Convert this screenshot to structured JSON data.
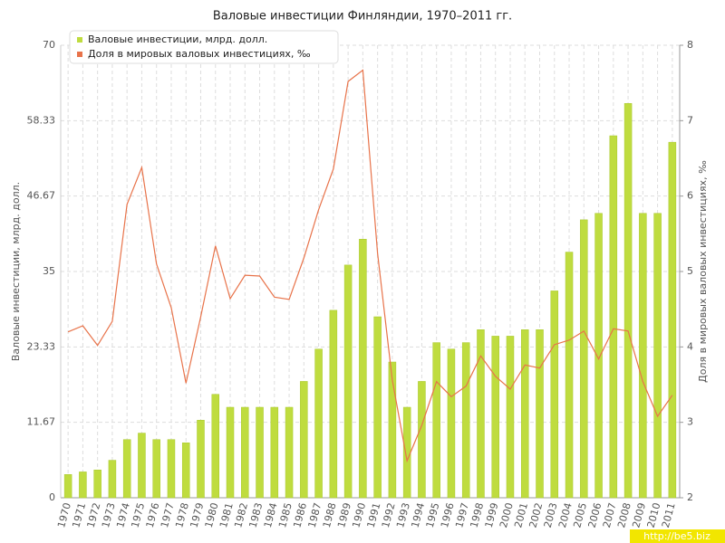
{
  "chart_data": {
    "type": "combo",
    "title": "Валовые инвестиции Финляндии, 1970–2011 гг.",
    "ylabel": "Валовые инвестиции, млрд. долл.",
    "y2label": "Доля в мировых валовых инвестициях, ‰",
    "watermark": "http://be5.biz",
    "categories": [
      "1970",
      "1971",
      "1972",
      "1973",
      "1974",
      "1975",
      "1976",
      "1977",
      "1978",
      "1979",
      "1980",
      "1981",
      "1982",
      "1983",
      "1984",
      "1985",
      "1986",
      "1987",
      "1988",
      "1989",
      "1990",
      "1991",
      "1992",
      "1993",
      "1994",
      "1995",
      "1996",
      "1997",
      "1998",
      "1999",
      "2000",
      "2001",
      "2002",
      "2003",
      "2004",
      "2005",
      "2006",
      "2007",
      "2008",
      "2009",
      "2010",
      "2011"
    ],
    "series": [
      {
        "name": "Валовые инвестиции, млрд. долл.",
        "type": "bar",
        "color": "#bfdc3f",
        "values": [
          3.6,
          4,
          4.3,
          5.8,
          9,
          10,
          9,
          9,
          8.5,
          12,
          16,
          14,
          14,
          14,
          14,
          14,
          18,
          23,
          29,
          36,
          40,
          28,
          21,
          14,
          18,
          24,
          23,
          24,
          26,
          25,
          25,
          26,
          26,
          32,
          38,
          43,
          44,
          56,
          61,
          44,
          44,
          55
        ]
      },
      {
        "name": "Доля в мировых валовых инвестициях, ‰",
        "type": "line",
        "axis": "y2",
        "color": "#e8734a",
        "values": [
          4.2,
          4.28,
          4.02,
          4.34,
          5.89,
          6.38,
          5.1,
          4.52,
          3.52,
          4.4,
          5.34,
          4.64,
          4.95,
          4.94,
          4.66,
          4.63,
          5.18,
          5.82,
          6.36,
          7.52,
          7.67,
          5.24,
          3.56,
          2.49,
          2.96,
          3.54,
          3.34,
          3.48,
          3.88,
          3.61,
          3.44,
          3.76,
          3.72,
          4.03,
          4.09,
          4.21,
          3.84,
          4.24,
          4.21,
          3.54,
          3.08,
          3.36
        ]
      }
    ],
    "ylim": [
      0,
      70
    ],
    "yticks": [
      0,
      11.67,
      23.33,
      35,
      46.67,
      58.33,
      70
    ],
    "y2lim": [
      2,
      8
    ],
    "y2ticks": [
      2,
      3,
      4,
      5,
      6,
      7,
      8
    ],
    "grid": true,
    "legend": "top-left"
  }
}
